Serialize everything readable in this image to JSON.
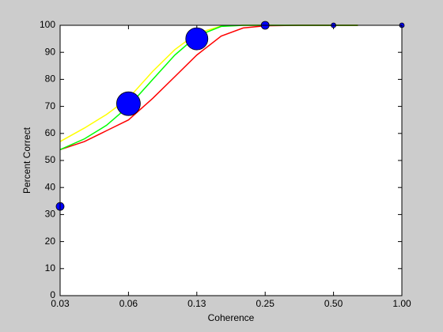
{
  "chart_data": {
    "type": "scatter-line",
    "xlabel": "Coherence",
    "ylabel": "Percent Correct",
    "log_x": true,
    "xlim": [
      0.03125,
      1
    ],
    "xticks": [
      {
        "value": 0.03125,
        "label": "0.03"
      },
      {
        "value": 0.0625,
        "label": "0.06"
      },
      {
        "value": 0.125,
        "label": "0.13"
      },
      {
        "value": 0.25,
        "label": "0.25"
      },
      {
        "value": 0.5,
        "label": "0.50"
      },
      {
        "value": 1,
        "label": "1.00"
      }
    ],
    "ylim": [
      0,
      100
    ],
    "yticks": [
      0,
      10,
      20,
      30,
      40,
      50,
      60,
      70,
      80,
      90,
      100
    ],
    "points": {
      "color": "#0000ff",
      "x": [
        0.03125,
        0.0625,
        0.125,
        0.25,
        0.5,
        1
      ],
      "values": [
        33,
        71,
        95,
        100,
        100,
        100
      ],
      "sizes": [
        5,
        15,
        14,
        5,
        3,
        3
      ]
    },
    "curve_x": [
      0.03125,
      0.04,
      0.05,
      0.0625,
      0.08,
      0.1,
      0.125,
      0.16,
      0.2,
      0.25,
      0.35,
      0.5,
      0.64
    ],
    "series": [
      {
        "color": "#ffff00",
        "values": [
          57,
          62,
          67,
          73,
          83,
          91,
          97,
          99.7,
          100,
          100,
          100,
          100,
          100
        ]
      },
      {
        "color": "#ff0000",
        "values": [
          54,
          57,
          61,
          65,
          73,
          81,
          89,
          96,
          99,
          99.8,
          100,
          100,
          100
        ]
      },
      {
        "color": "#00ff00",
        "values": [
          54,
          58,
          63,
          70,
          80,
          89,
          96,
          99.6,
          100,
          100,
          100,
          100,
          100
        ]
      }
    ]
  }
}
